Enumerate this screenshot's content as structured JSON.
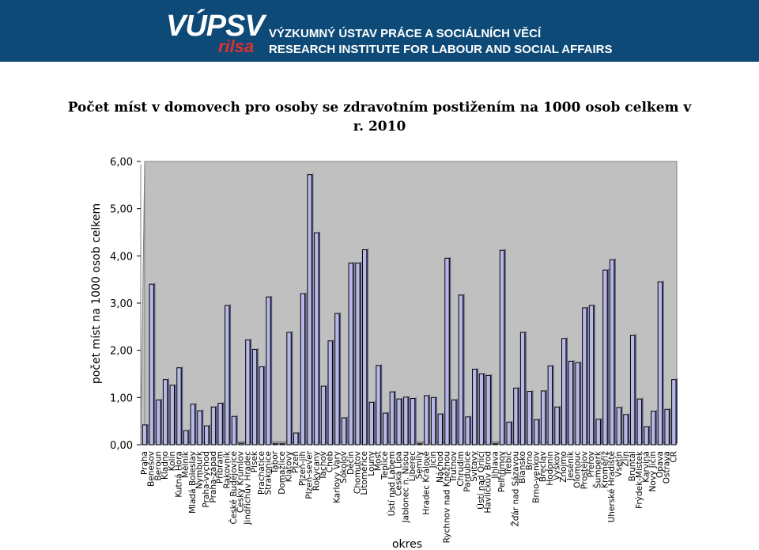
{
  "header": {
    "logo_text": "VÚPSV",
    "logo_subtext": "rilsa",
    "institute_cz": "VÝZKUMNÝ ÚSTAV PRÁCE A SOCIÁLNÍCH VĚCÍ",
    "institute_en": "RESEARCH INSTITUTE FOR LABOUR AND SOCIAL AFFAIRS"
  },
  "colors": {
    "banner": "#0d4a78",
    "bar_fill": "#b8b8e8",
    "bar_stroke": "#000000",
    "plot_bg": "#c0c0c0"
  },
  "chart_data": {
    "type": "bar",
    "title": "Počet míst v domovech  pro osoby se zdravotním postižením na 1000 osob celkem v r. 2010",
    "xlabel": "okres",
    "ylabel": "počet míst na 1000 osob celkem",
    "ylim": [
      0,
      6
    ],
    "yticks": [
      "0,00",
      "1,00",
      "2,00",
      "3,00",
      "4,00",
      "5,00",
      "6,00"
    ],
    "grid": false,
    "legend": "none",
    "categories": [
      "Praha",
      "Benešov",
      "Beroun",
      "Kladno",
      "Kolín",
      "Kutná Hora",
      "Mělník",
      "Mladá Boleslav",
      "Nymburk",
      "Praha-východ",
      "Praha-západ",
      "Příbram",
      "Rakovník",
      "České Budějovice",
      "Český Krumlov",
      "Jindřichův Hradec",
      "Písek",
      "Prachatice",
      "Strakonice",
      "Tábor",
      "Domažlice",
      "Klatovy",
      "Plzeň",
      "Plzeň-jih",
      "Plzeň-sever",
      "Rokycany",
      "Tachov",
      "Cheb",
      "Karlovy Vary",
      "Sokolov",
      "Děčín",
      "Chomutov",
      "Litoměřice",
      "Louny",
      "Most",
      "Teplice",
      "Ústí nad Labem",
      "Česká Lípa",
      "Jablonec n. Nisou",
      "Liberec",
      "Semily",
      "Hradec Králové",
      "Jičín",
      "Náchod",
      "Rychnov nad Kněžnou",
      "Trutnov",
      "Chrudim",
      "Pardubice",
      "Svitavy",
      "Ústí nad Orlicí",
      "Havlíčkův Brod",
      "Jihlava",
      "Pelhřimov",
      "Třebíč",
      "Žďár nad Sázavou",
      "Blansko",
      "Brno",
      "Brno-venkov",
      "Břeclav",
      "Hodonín",
      "Vyškov",
      "Znojmo",
      "Jeseník",
      "Olomouc",
      "Prostějov",
      "Přerov",
      "Šumperk",
      "Kroměříž",
      "Uherské Hradiště",
      "Vsetín",
      "Zlín",
      "Bruntál",
      "Frýdek-Místek",
      "Karviná",
      "Nový Jičín",
      "Opava",
      "Ostrava",
      "ČR"
    ],
    "values": [
      0.42,
      3.4,
      0.95,
      1.38,
      1.26,
      1.63,
      0.3,
      0.86,
      0.72,
      0.4,
      0.8,
      0.88,
      2.95,
      0.6,
      0.03,
      2.22,
      2.02,
      1.65,
      3.13,
      0.02,
      0.02,
      2.38,
      0.25,
      3.2,
      5.72,
      4.49,
      1.24,
      2.2,
      2.78,
      0.57,
      3.85,
      3.85,
      4.13,
      0.9,
      1.68,
      0.67,
      1.12,
      0.97,
      1.01,
      0.98,
      0.02,
      1.04,
      1.0,
      0.65,
      3.95,
      0.95,
      3.17,
      0.59,
      1.6,
      1.5,
      1.47,
      0.02,
      4.12,
      0.48,
      1.2,
      2.38,
      1.13,
      0.53,
      1.14,
      1.67,
      0.8,
      2.25,
      1.77,
      1.74,
      2.9,
      2.95,
      0.54,
      3.7,
      3.92,
      0.79,
      0.64,
      2.32,
      0.97,
      0.38,
      0.71,
      3.45,
      0.75,
      1.38
    ]
  }
}
